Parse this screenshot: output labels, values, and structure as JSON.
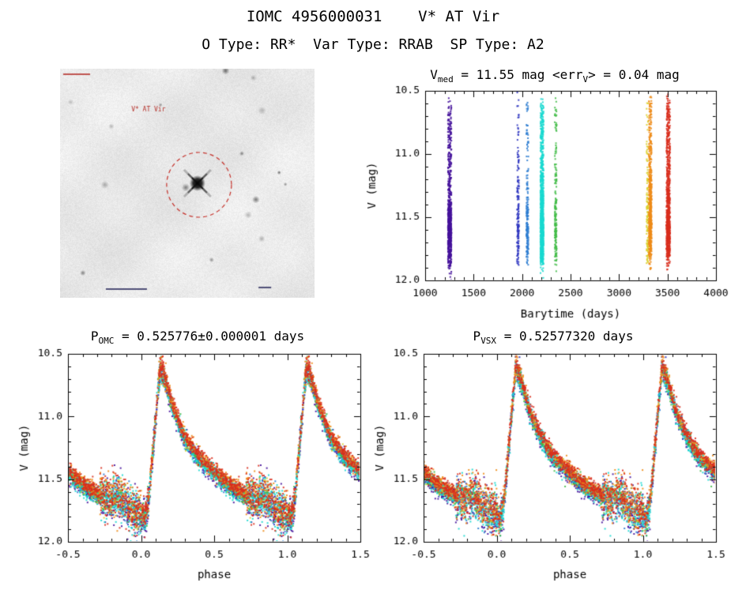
{
  "header": {
    "title": "IOMC 4956000031    V* AT Vir",
    "subtitle": "O Type: RR*  Var Type: RRAB  SP Type: A2"
  },
  "finding_chart": {
    "target_label": "V* AT Vir",
    "circle_color": "#c53029",
    "description": "grayscale sky finding-chart image with target star marked by red dashed circle"
  },
  "lightcurve_template": {
    "knots": [
      [
        0,
        11.78
      ],
      [
        0.025,
        11.82
      ],
      [
        0.05,
        11.7
      ],
      [
        0.13,
        10.62
      ],
      [
        0.16,
        10.7
      ],
      [
        0.22,
        10.95
      ],
      [
        0.3,
        11.18
      ],
      [
        0.4,
        11.35
      ],
      [
        0.5,
        11.46
      ],
      [
        0.6,
        11.56
      ],
      [
        0.7,
        11.63
      ],
      [
        0.78,
        11.68
      ],
      [
        0.84,
        11.63
      ],
      [
        0.9,
        11.72
      ],
      [
        0.96,
        11.78
      ],
      [
        1,
        11.78
      ]
    ],
    "sigma_zones": [
      {
        "from": 0,
        "to": 0.05,
        "sigma": 0.06
      },
      {
        "from": 0.05,
        "to": 0.17,
        "sigma": 0.045
      },
      {
        "from": 0.17,
        "to": 0.72,
        "sigma": 0.032
      },
      {
        "from": 0.72,
        "to": 1,
        "sigma": 0.085
      }
    ]
  },
  "chart_data": [
    {
      "id": "barytime",
      "type": "scatter",
      "mode": "time",
      "title_parts": [
        {
          "t": "V"
        },
        {
          "t": "med",
          "sub": true
        },
        {
          "t": " = 11.55 mag <err"
        },
        {
          "t": "V",
          "sub": true
        },
        {
          "t": "> = 0.04 mag"
        }
      ],
      "v_med_mag": 11.55,
      "v_err_mag": 0.04,
      "xlabel": "Barytime (days)",
      "ylabel": "V (mag)",
      "xlim": [
        1000,
        4000
      ],
      "ylim": [
        10.5,
        12.0
      ],
      "y_inverted": true,
      "xticks": [
        1000,
        1500,
        2000,
        2500,
        3000,
        3500,
        4000
      ],
      "xtick_labels": [
        "1000",
        "1500",
        "2000",
        "2500",
        "3000",
        "3500",
        "4000"
      ],
      "yticks": [
        10.5,
        11.0,
        11.5,
        12.0
      ],
      "ytick_labels": [
        "10.5",
        "11.0",
        "11.5",
        "12.0"
      ],
      "x_minor": 100,
      "y_minor": 0.1,
      "clusters": [
        {
          "name": "epoch-1",
          "color": "#45129b",
          "t": 1253,
          "halfwidth": 18,
          "n": 700,
          "dmag": 0.01
        },
        {
          "name": "epoch-2",
          "color": "#2c34c0",
          "t": 1958,
          "halfwidth": 10,
          "n": 160,
          "dmag": 0
        },
        {
          "name": "epoch-3",
          "color": "#2e7dd1",
          "t": 2055,
          "halfwidth": 10,
          "n": 200,
          "dmag": 0
        },
        {
          "name": "epoch-4",
          "color": "#1ad9d0",
          "t": 2205,
          "halfwidth": 16,
          "n": 1000,
          "dmag": 0
        },
        {
          "name": "epoch-5",
          "color": "#43bd48",
          "t": 2347,
          "halfwidth": 10,
          "n": 200,
          "dmag": 0
        },
        {
          "name": "epoch-6",
          "color": "#dcd12f",
          "t": 3292,
          "halfwidth": 8,
          "n": 120,
          "dmag": -0.01
        },
        {
          "name": "epoch-7",
          "color": "#ee8c18",
          "t": 3322,
          "halfwidth": 14,
          "n": 650,
          "dmag": -0.03
        },
        {
          "name": "epoch-8",
          "color": "#d92f1e",
          "t": 3508,
          "halfwidth": 18,
          "n": 850,
          "dmag": -0.03
        }
      ]
    },
    {
      "id": "folded_omc",
      "type": "scatter",
      "mode": "phase",
      "title_parts": [
        {
          "t": "P"
        },
        {
          "t": "OMC",
          "sub": true
        },
        {
          "t": " = 0.525776±0.000001 days"
        }
      ],
      "period_days": "0.525776",
      "period_err_days": "0.000001",
      "xlabel": "phase",
      "ylabel": "V (mag)",
      "xlim": [
        -0.5,
        1.5
      ],
      "ylim": [
        10.5,
        12.0
      ],
      "y_inverted": true,
      "xticks": [
        -0.5,
        0,
        0.5,
        1,
        1.5
      ],
      "xtick_labels": [
        "-0.5",
        "0.0",
        "0.5",
        "1.0",
        "1.5"
      ],
      "yticks": [
        10.5,
        11.0,
        11.5,
        12.0
      ],
      "ytick_labels": [
        "10.5",
        "11.0",
        "11.5",
        "12.0"
      ],
      "x_minor": 0.1,
      "y_minor": 0.1,
      "clusters": "same_as_barytime"
    },
    {
      "id": "folded_vsx",
      "type": "scatter",
      "mode": "phase",
      "title_parts": [
        {
          "t": "P"
        },
        {
          "t": "VSX",
          "sub": true
        },
        {
          "t": " = 0.52577320 days"
        }
      ],
      "period_days": "0.52577320",
      "xlabel": "phase",
      "ylabel": "V (mag)",
      "xlim": [
        -0.5,
        1.5
      ],
      "ylim": [
        10.5,
        12.0
      ],
      "y_inverted": true,
      "xticks": [
        -0.5,
        0,
        0.5,
        1,
        1.5
      ],
      "xtick_labels": [
        "-0.5",
        "0.0",
        "0.5",
        "1.0",
        "1.5"
      ],
      "yticks": [
        10.5,
        11.0,
        11.5,
        12.0
      ],
      "ytick_labels": [
        "10.5",
        "11.0",
        "11.5",
        "12.0"
      ],
      "x_minor": 0.1,
      "y_minor": 0.1,
      "clusters": "same_as_barytime"
    }
  ]
}
